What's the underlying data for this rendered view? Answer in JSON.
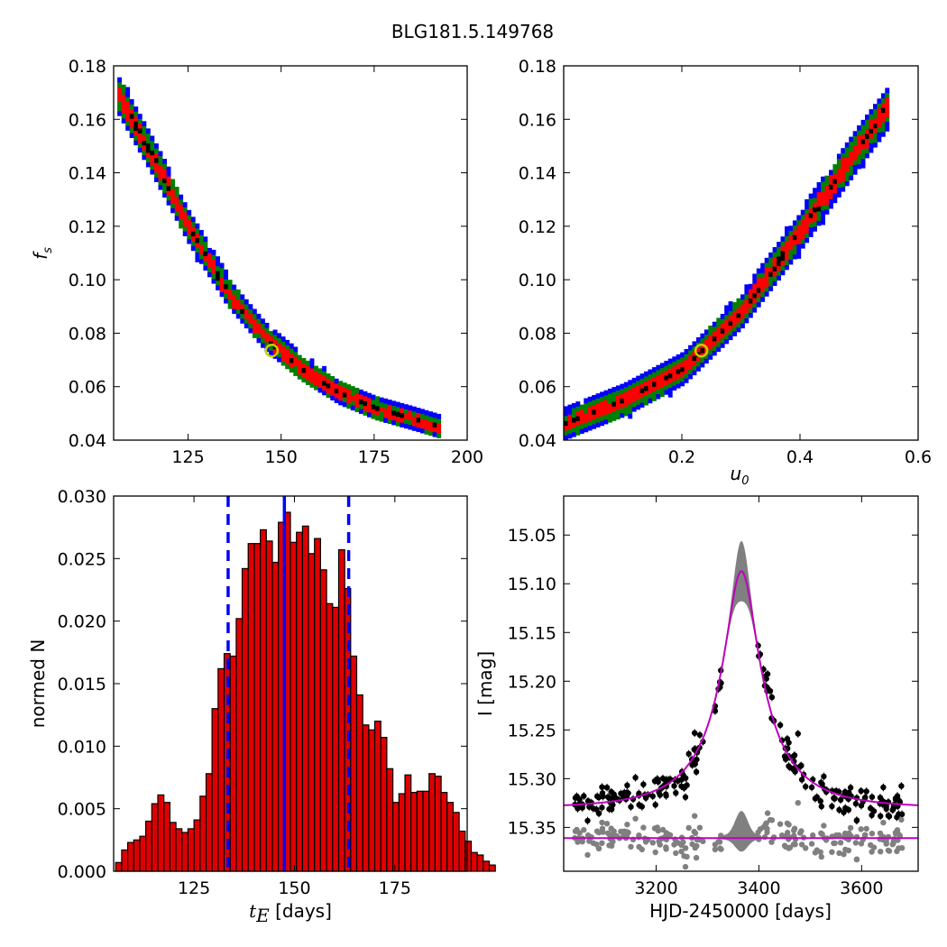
{
  "title": "BLG181.5.149768",
  "colors": {
    "level_outer": "#0000ff",
    "level_mid": "#008000",
    "level_inner": "#ff0000",
    "level_core": "#000000",
    "best_fit_marker": "#cccc00",
    "hist_bar": "#dd0000",
    "median_line": "#0000ff",
    "model_curve": "#bf00bf",
    "residuals": "#808080"
  },
  "panels": {
    "tl": {
      "ylabel": "f",
      "ylabel_sub": "s",
      "xticks": [
        "125",
        "150",
        "175",
        "200"
      ],
      "yticks": [
        "0.04",
        "0.06",
        "0.08",
        "0.10",
        "0.12",
        "0.14",
        "0.16",
        "0.18"
      ]
    },
    "tr": {
      "xlabel": "u",
      "xlabel_sub": "0",
      "xticks": [
        "0.2",
        "0.4",
        "0.6"
      ],
      "yticks": [
        "0.04",
        "0.06",
        "0.08",
        "0.10",
        "0.12",
        "0.14",
        "0.16",
        "0.18"
      ]
    },
    "bl": {
      "xlabel_var": "t",
      "xlabel_sub": "E",
      "xlabel_units": " [days]",
      "ylabel": "normed N",
      "xticks": [
        "125",
        "150",
        "175"
      ],
      "yticks": [
        "0.000",
        "0.005",
        "0.010",
        "0.015",
        "0.020",
        "0.025",
        "0.030"
      ]
    },
    "br": {
      "xlabel": "HJD-2450000 [days]",
      "ylabel": "I [mag]",
      "xticks": [
        "3200",
        "3400",
        "3600"
      ],
      "yticks": [
        "15.05",
        "15.10",
        "15.15",
        "15.20",
        "15.25",
        "15.30",
        "15.35"
      ]
    }
  },
  "chart_data": [
    {
      "type": "heatmap",
      "panel": "tE vs fs posterior",
      "x_axis": "tE [days]",
      "xlim": [
        105,
        200
      ],
      "y_axis": "fs",
      "ylim": [
        0.04,
        0.18
      ],
      "levels": [
        "blue (outer)",
        "green",
        "red",
        "black (core)"
      ],
      "ridge": [
        [
          106,
          0.168
        ],
        [
          115,
          0.145
        ],
        [
          125,
          0.118
        ],
        [
          135,
          0.095
        ],
        [
          145,
          0.078
        ],
        [
          155,
          0.066
        ],
        [
          165,
          0.057
        ],
        [
          175,
          0.051
        ],
        [
          185,
          0.047
        ],
        [
          192,
          0.044
        ]
      ],
      "best_fit": [
        147.5,
        0.0735
      ]
    },
    {
      "type": "heatmap",
      "panel": "u0 vs fs posterior",
      "x_axis": "u0",
      "xlim": [
        0.0,
        0.6
      ],
      "y_axis": "fs",
      "ylim": [
        0.04,
        0.18
      ],
      "levels": [
        "blue (outer)",
        "green",
        "red",
        "black (core)"
      ],
      "ridge": [
        [
          0.0,
          0.045
        ],
        [
          0.1,
          0.054
        ],
        [
          0.2,
          0.066
        ],
        [
          0.3,
          0.088
        ],
        [
          0.4,
          0.118
        ],
        [
          0.5,
          0.15
        ],
        [
          0.55,
          0.165
        ]
      ],
      "best_fit": [
        0.233,
        0.0735
      ]
    },
    {
      "type": "bar",
      "panel": "tE histogram",
      "x_axis": "tE [days]",
      "xlim": [
        105,
        193
      ],
      "y_axis": "normed N",
      "ylim": [
        0.0,
        0.03
      ],
      "bin_width": 1.5,
      "bin_start": 105.5,
      "values": [
        0.0007,
        0.0017,
        0.0023,
        0.0025,
        0.0028,
        0.004,
        0.0054,
        0.0061,
        0.0055,
        0.0039,
        0.0034,
        0.0031,
        0.0034,
        0.0041,
        0.006,
        0.0078,
        0.013,
        0.0162,
        0.0174,
        0.0172,
        0.0202,
        0.0242,
        0.0262,
        0.0262,
        0.0273,
        0.0264,
        0.0247,
        0.0279,
        0.0287,
        0.0263,
        0.0271,
        0.0276,
        0.0254,
        0.0266,
        0.0241,
        0.0214,
        0.0211,
        0.0257,
        0.0226,
        0.0172,
        0.0141,
        0.0117,
        0.0113,
        0.012,
        0.0107,
        0.0082,
        0.0055,
        0.0062,
        0.0077,
        0.0063,
        0.0064,
        0.0064,
        0.0078,
        0.0076,
        0.0063,
        0.0055,
        0.0047,
        0.0032,
        0.0024,
        0.0015,
        0.0013,
        0.0008,
        0.0005
      ],
      "median": 147.5,
      "interval": [
        133.5,
        163.5
      ]
    },
    {
      "type": "scatter",
      "panel": "light curve",
      "x_axis": "HJD-2450000 [days]",
      "xlim": [
        3020,
        3710
      ],
      "y_axis": "I [mag]",
      "ylim": [
        15.395,
        15.01
      ],
      "y_inverted": true,
      "model": {
        "t0": 3366,
        "baseline": 15.33,
        "peak": 15.087,
        "tE": 147.5,
        "u0": 0.233
      },
      "residual_offset": 15.361,
      "points_x_range": [
        3040,
        3680
      ]
    }
  ]
}
